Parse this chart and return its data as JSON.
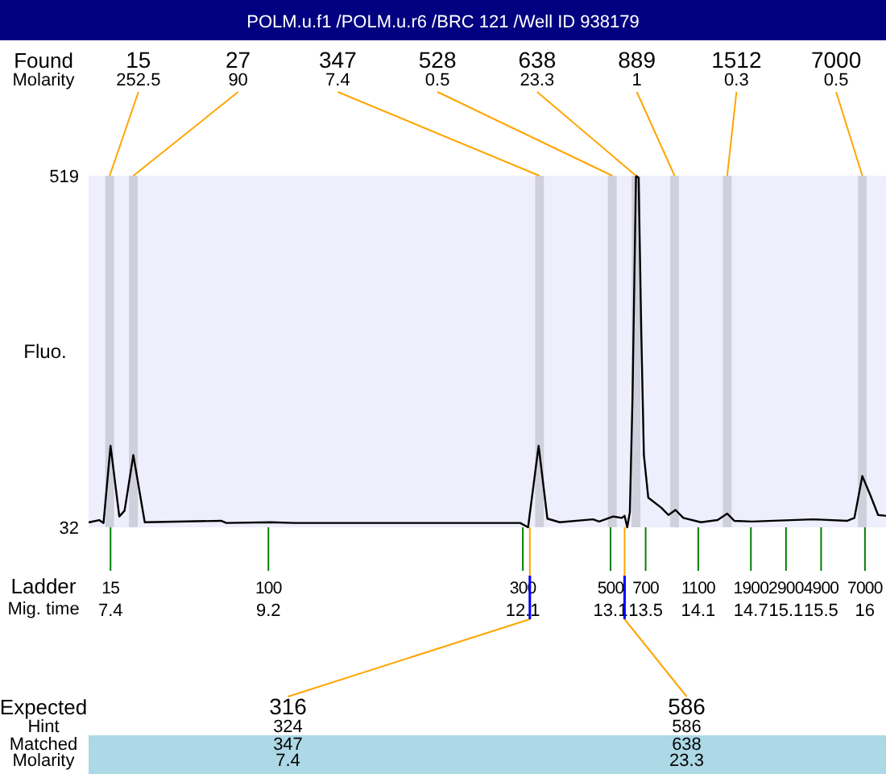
{
  "chart_data": {
    "type": "line",
    "title": "POLM.u.f1 /POLM.u.r6 /BRC 121 /Well ID 938179",
    "ylabel": "Fluo.",
    "xlabel": "Mig. time",
    "xlim": [
      7.15,
      16.24
    ],
    "ylim": [
      32,
      519
    ],
    "yticks": [
      32,
      519
    ],
    "xticks": [
      7.4,
      9.2,
      12.1,
      13.1,
      13.5,
      14.1,
      14.7,
      15.1,
      15.5,
      16
    ],
    "series": [
      {
        "color": "#000000",
        "x": [
          7.16,
          7.27,
          7.32,
          7.4,
          7.5,
          7.56,
          7.66,
          7.79,
          8.66,
          8.72,
          9.23,
          9.49,
          11.04,
          12.07,
          12.16,
          12.28,
          12.38,
          12.52,
          12.9,
          12.97,
          13.13,
          13.23,
          13.26,
          13.29,
          13.32,
          13.35,
          13.39,
          13.42,
          13.45,
          13.48,
          13.53,
          13.68,
          13.76,
          13.84,
          13.93,
          14.13,
          14.32,
          14.43,
          14.51,
          14.71,
          15.41,
          15.8,
          15.88,
          15.97,
          16.06,
          16.15,
          16.23
        ],
        "values": [
          39,
          42,
          38,
          145,
          47,
          55,
          132,
          39,
          41,
          38,
          39,
          38,
          38,
          38,
          32,
          145,
          44,
          39,
          43,
          40,
          47,
          45,
          48,
          32,
          53,
          210,
          519,
          516,
          304,
          132,
          73,
          59,
          49,
          56,
          45,
          39,
          42,
          51,
          41,
          40,
          43,
          41,
          45,
          103,
          77,
          49,
          48
        ]
      }
    ],
    "bands": [
      {
        "axis": "x",
        "from": 7.34,
        "to": 7.44,
        "label": "15\n252.5",
        "color": "#d0d0dc"
      },
      {
        "axis": "x",
        "from": 7.61,
        "to": 7.71,
        "label": "27\n90",
        "color": "#d0d0dc"
      },
      {
        "axis": "x",
        "from": 12.24,
        "to": 12.34,
        "label": "347\n7.4",
        "color": "#d0d0dc"
      },
      {
        "axis": "x",
        "from": 13.07,
        "to": 13.17,
        "label": "528\n0.5",
        "color": "#d0d0dc"
      },
      {
        "axis": "x",
        "from": 13.34,
        "to": 13.44,
        "label": "638\n23.3",
        "color": "#d0d0dc"
      },
      {
        "axis": "x",
        "from": 13.78,
        "to": 13.88,
        "label": "889\n1",
        "color": "#d0d0dc"
      },
      {
        "axis": "x",
        "from": 14.38,
        "to": 14.48,
        "label": "1512\n0.3",
        "color": "#d0d0dc"
      },
      {
        "axis": "x",
        "from": 15.92,
        "to": 16.02,
        "label": "7000\n0.5",
        "color": "#d0d0dc"
      }
    ],
    "annotations": [
      "Found\nMolarity",
      "Ladder",
      "Expected\nHint\nMatched\nMolarity",
      {
        "text": "15",
        "x": 7.4,
        "y": 32
      },
      {
        "text": "100",
        "x": 9.2,
        "y": 32
      },
      {
        "text": "300",
        "x": 12.1,
        "y": 32
      },
      {
        "text": "500",
        "x": 13.1,
        "y": 32
      },
      {
        "text": "700",
        "x": 13.5,
        "y": 32
      },
      {
        "text": "1100",
        "x": 14.1,
        "y": 32
      },
      {
        "text": "1900",
        "x": 14.7,
        "y": 32
      },
      {
        "text": "2900",
        "x": 15.1,
        "y": 32
      },
      {
        "text": "4900",
        "x": 15.5,
        "y": 32
      },
      {
        "text": "7000",
        "x": 16,
        "y": 32
      },
      {
        "text": "316\n324\n347\n7.4",
        "x": 12.18,
        "y": 32
      },
      {
        "text": "586\n586\n638\n23.3",
        "x": 13.26,
        "y": 32
      }
    ]
  }
}
